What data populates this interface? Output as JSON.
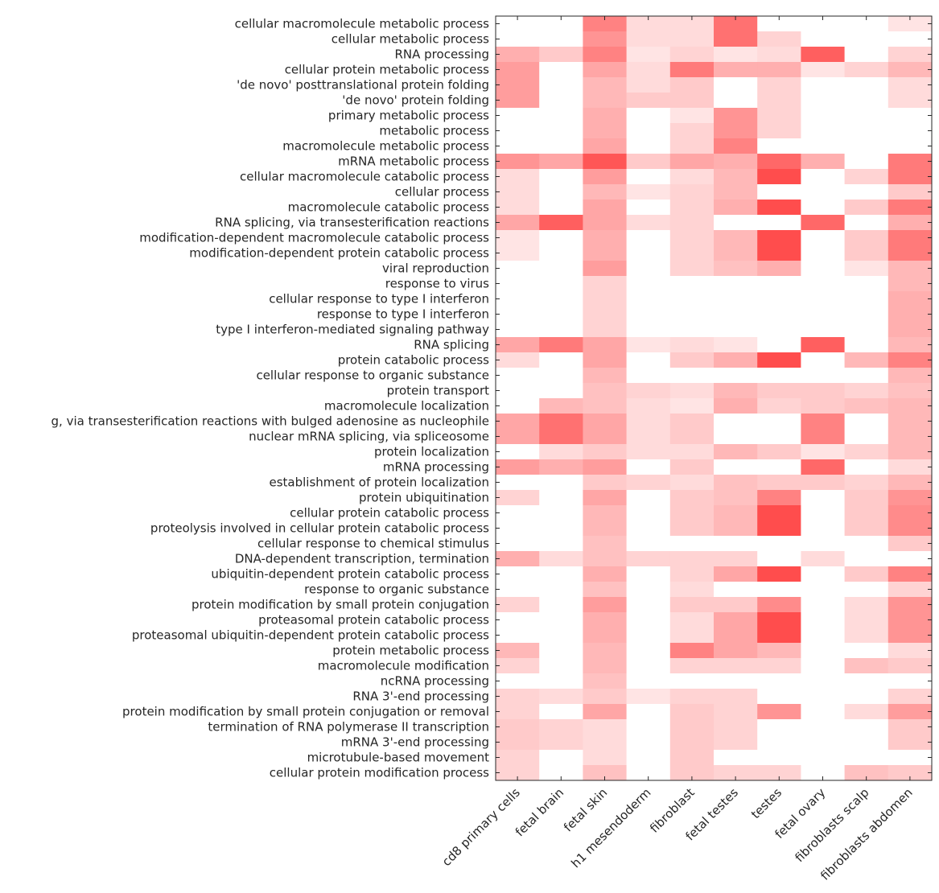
{
  "chart_data": {
    "type": "heatmap",
    "title": "",
    "xlabel": "",
    "ylabel": "",
    "colormap": {
      "low": "#ffffff",
      "high": "#ff4d4d"
    },
    "value_range": [
      0,
      1
    ],
    "columns": [
      "cd8 primary cells",
      "fetal brain",
      "fetal skin",
      "h1 mesendoderm",
      "fibroblast",
      "fetal testes",
      "testes",
      "fetal ovary",
      "fibroblasts scalp",
      "fibroblasts abdomen"
    ],
    "rows": [
      "cellular macromolecule metabolic process",
      "cellular metabolic process",
      "RNA processing",
      "cellular protein metabolic process",
      "'de novo' posttranslational protein folding",
      "'de novo' protein folding",
      "primary metabolic process",
      "metabolic process",
      "macromolecule metabolic process",
      "mRNA metabolic process",
      "cellular macromolecule catabolic process",
      "cellular process",
      "macromolecule catabolic process",
      "RNA splicing, via transesterification reactions",
      "modification-dependent macromolecule catabolic process",
      "modification-dependent protein catabolic process",
      "viral reproduction",
      "response to virus",
      "cellular response to type I interferon",
      "response to type I interferon",
      "type I interferon-mediated signaling pathway",
      "RNA splicing",
      "protein catabolic process",
      "cellular response to organic substance",
      "protein transport",
      "macromolecule localization",
      "g, via transesterification reactions with bulged adenosine as nucleophile",
      "nuclear mRNA splicing, via spliceosome",
      "protein localization",
      "mRNA processing",
      "establishment of protein localization",
      "protein ubiquitination",
      "cellular protein catabolic process",
      "proteolysis involved in cellular protein catabolic process",
      "cellular response to chemical stimulus",
      "DNA-dependent transcription, termination",
      "ubiquitin-dependent protein catabolic process",
      "response to organic substance",
      "protein modification by small protein conjugation",
      "proteasomal protein catabolic process",
      "proteasomal ubiquitin-dependent protein catabolic process",
      "protein metabolic process",
      "macromolecule modification",
      "ncRNA processing",
      "RNA 3'-end processing",
      "protein modification by small protein conjugation or removal",
      "termination of RNA polymerase II transcription",
      "mRNA 3'-end processing",
      "microtubule-based movement",
      "cellular protein modification process"
    ],
    "values": [
      [
        0,
        0,
        0.7,
        0.2,
        0.2,
        0.8,
        0,
        0,
        0,
        0.15
      ],
      [
        0,
        0,
        0.6,
        0.2,
        0.2,
        0.8,
        0.25,
        0,
        0,
        0
      ],
      [
        0.45,
        0.3,
        0.7,
        0.15,
        0.25,
        0.15,
        0.2,
        0.9,
        0,
        0.25
      ],
      [
        0.55,
        0,
        0.5,
        0.2,
        0.75,
        0.45,
        0.45,
        0.15,
        0.25,
        0.4
      ],
      [
        0.55,
        0,
        0.4,
        0.2,
        0.3,
        0,
        0.25,
        0,
        0,
        0.2
      ],
      [
        0.55,
        0,
        0.4,
        0.3,
        0.3,
        0,
        0.25,
        0,
        0,
        0.2
      ],
      [
        0,
        0,
        0.45,
        0,
        0.15,
        0.6,
        0.25,
        0,
        0,
        0
      ],
      [
        0,
        0,
        0.45,
        0,
        0.25,
        0.6,
        0.25,
        0,
        0,
        0
      ],
      [
        0,
        0,
        0.5,
        0,
        0.25,
        0.7,
        0,
        0,
        0,
        0
      ],
      [
        0.6,
        0.5,
        0.95,
        0.3,
        0.5,
        0.45,
        0.85,
        0.45,
        0,
        0.75
      ],
      [
        0.2,
        0,
        0.55,
        0,
        0.2,
        0.4,
        1.0,
        0,
        0.25,
        0.75
      ],
      [
        0.2,
        0,
        0.4,
        0.15,
        0.25,
        0.4,
        0,
        0,
        0,
        0.3
      ],
      [
        0.2,
        0,
        0.5,
        0,
        0.25,
        0.45,
        1.0,
        0,
        0.3,
        0.75
      ],
      [
        0.5,
        0.9,
        0.5,
        0.2,
        0.25,
        0,
        0,
        0.85,
        0,
        0.45
      ],
      [
        0.15,
        0,
        0.45,
        0,
        0.25,
        0.4,
        1.0,
        0,
        0.3,
        0.75
      ],
      [
        0.15,
        0,
        0.45,
        0,
        0.25,
        0.4,
        1.0,
        0,
        0.3,
        0.75
      ],
      [
        0,
        0,
        0.55,
        0,
        0.25,
        0.35,
        0.45,
        0,
        0.15,
        0.4
      ],
      [
        0,
        0,
        0.25,
        0,
        0,
        0,
        0,
        0,
        0,
        0.4
      ],
      [
        0,
        0,
        0.25,
        0,
        0,
        0,
        0,
        0,
        0,
        0.45
      ],
      [
        0,
        0,
        0.25,
        0,
        0,
        0,
        0,
        0,
        0,
        0.45
      ],
      [
        0,
        0,
        0.25,
        0,
        0,
        0,
        0,
        0,
        0,
        0.45
      ],
      [
        0.5,
        0.75,
        0.5,
        0.15,
        0.2,
        0.15,
        0,
        0.9,
        0,
        0.4
      ],
      [
        0.2,
        0,
        0.5,
        0,
        0.3,
        0.45,
        1.0,
        0,
        0.4,
        0.7
      ],
      [
        0,
        0,
        0.4,
        0,
        0,
        0,
        0,
        0,
        0,
        0.4
      ],
      [
        0,
        0,
        0.35,
        0.25,
        0.2,
        0.4,
        0.3,
        0.3,
        0.25,
        0.35
      ],
      [
        0,
        0.4,
        0.35,
        0.2,
        0.15,
        0.45,
        0.25,
        0.3,
        0.35,
        0.4
      ],
      [
        0.5,
        0.8,
        0.5,
        0.2,
        0.3,
        0,
        0,
        0.7,
        0,
        0.4
      ],
      [
        0.5,
        0.8,
        0.5,
        0.2,
        0.3,
        0,
        0,
        0.7,
        0,
        0.4
      ],
      [
        0,
        0.2,
        0.3,
        0.2,
        0.2,
        0.4,
        0.3,
        0.15,
        0.25,
        0.4
      ],
      [
        0.55,
        0.45,
        0.55,
        0,
        0.3,
        0,
        0,
        0.85,
        0,
        0.2
      ],
      [
        0,
        0,
        0.3,
        0.25,
        0.2,
        0.35,
        0.3,
        0.3,
        0.25,
        0.4
      ],
      [
        0.25,
        0,
        0.5,
        0,
        0.3,
        0.35,
        0.7,
        0,
        0.3,
        0.6
      ],
      [
        0,
        0,
        0.4,
        0,
        0.3,
        0.4,
        1.0,
        0,
        0.3,
        0.65
      ],
      [
        0,
        0,
        0.4,
        0,
        0.3,
        0.4,
        1.0,
        0,
        0.3,
        0.65
      ],
      [
        0,
        0,
        0.35,
        0,
        0,
        0,
        0,
        0,
        0,
        0.3
      ],
      [
        0.45,
        0.2,
        0.35,
        0.25,
        0.25,
        0.25,
        0,
        0.2,
        0,
        0
      ],
      [
        0,
        0,
        0.45,
        0,
        0.25,
        0.5,
        1.0,
        0,
        0.3,
        0.7
      ],
      [
        0,
        0,
        0.35,
        0,
        0.2,
        0,
        0,
        0,
        0,
        0.25
      ],
      [
        0.25,
        0,
        0.55,
        0,
        0.3,
        0.3,
        0.65,
        0,
        0.2,
        0.6
      ],
      [
        0,
        0,
        0.45,
        0,
        0.2,
        0.5,
        1.0,
        0,
        0.2,
        0.6
      ],
      [
        0,
        0,
        0.45,
        0,
        0.2,
        0.5,
        1.0,
        0,
        0.2,
        0.6
      ],
      [
        0.4,
        0,
        0.4,
        0,
        0.7,
        0.5,
        0.4,
        0,
        0,
        0.2
      ],
      [
        0.25,
        0,
        0.4,
        0,
        0.25,
        0.25,
        0.25,
        0,
        0.35,
        0.3
      ],
      [
        0,
        0,
        0.35,
        0,
        0,
        0,
        0,
        0,
        0,
        0
      ],
      [
        0.25,
        0.2,
        0.3,
        0.15,
        0.25,
        0.25,
        0,
        0,
        0,
        0.25
      ],
      [
        0.25,
        0,
        0.5,
        0,
        0.3,
        0.25,
        0.6,
        0,
        0.2,
        0.55
      ],
      [
        0.3,
        0.25,
        0.2,
        0,
        0.3,
        0.25,
        0,
        0,
        0,
        0.3
      ],
      [
        0.3,
        0.25,
        0.2,
        0,
        0.3,
        0.25,
        0,
        0,
        0,
        0.3
      ],
      [
        0.25,
        0,
        0.2,
        0,
        0.3,
        0,
        0,
        0,
        0,
        0
      ],
      [
        0.25,
        0,
        0.35,
        0,
        0.3,
        0.25,
        0.25,
        0,
        0.35,
        0.3
      ]
    ],
    "grid": false,
    "legend": "none"
  }
}
